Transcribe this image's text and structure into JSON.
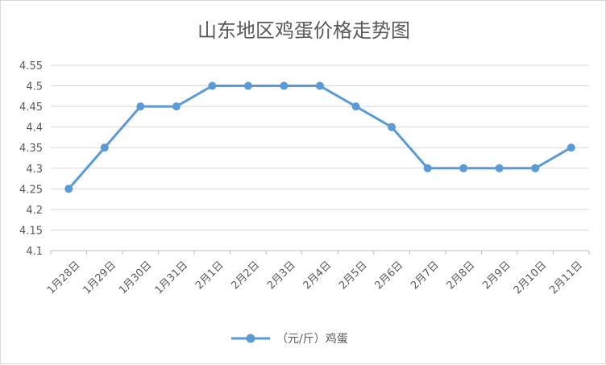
{
  "chart_data": {
    "type": "line",
    "title": "山东地区鸡蛋价格走势图",
    "categories": [
      "1月28日",
      "1月29日",
      "1月30日",
      "1月31日",
      "2月1日",
      "2月2日",
      "2月3日",
      "2月4日",
      "2月5日",
      "2月6日",
      "2月7日",
      "2月8日",
      "2月9日",
      "2月10日",
      "2月11日"
    ],
    "series": [
      {
        "name": "（元/斤）鸡蛋",
        "values": [
          4.25,
          4.35,
          4.45,
          4.45,
          4.5,
          4.5,
          4.5,
          4.5,
          4.45,
          4.4,
          4.3,
          4.3,
          4.3,
          4.3,
          4.35
        ]
      }
    ],
    "ylim": [
      4.1,
      4.55
    ],
    "yticks": [
      "4.1",
      "4.15",
      "4.2",
      "4.25",
      "4.3",
      "4.35",
      "4.4",
      "4.45",
      "4.5",
      "4.55"
    ],
    "grid": true,
    "legend_position": "bottom",
    "colors": {
      "line": "#5b9bd5",
      "grid": "#d9d9d9",
      "text": "#595959"
    }
  }
}
